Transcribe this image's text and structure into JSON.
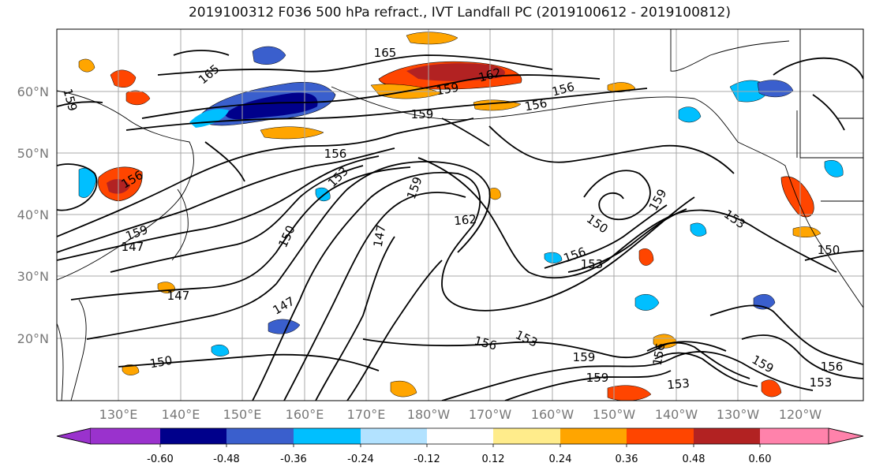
{
  "title": "2019100312 F036 500 hPa refract., IVT Landfall PC (2019100612 - 2019100812)",
  "map": {
    "lat_labels": [
      "60°N",
      "50°N",
      "40°N",
      "30°N",
      "20°N"
    ],
    "lon_labels": [
      "130°E",
      "140°E",
      "150°E",
      "160°E",
      "170°E",
      "180°W",
      "170°W",
      "160°W",
      "150°W",
      "140°W",
      "130°W",
      "120°W"
    ],
    "contour_labels": [
      "165",
      "165",
      "159",
      "159",
      "162",
      "156",
      "156",
      "159",
      "156",
      "153",
      "156",
      "159",
      "150",
      "162",
      "159",
      "150",
      "159",
      "153",
      "147",
      "147",
      "156",
      "153",
      "150",
      "147",
      "150",
      "156",
      "153",
      "159",
      "159",
      "156",
      "153",
      "159",
      "156",
      "153",
      "147"
    ]
  },
  "colorbar": {
    "tick_labels": [
      "-0.60",
      "-0.48",
      "-0.36",
      "-0.24",
      "-0.12",
      "0.12",
      "0.24",
      "0.36",
      "0.48",
      "0.60"
    ],
    "colors": [
      "#9a32cd",
      "#00008b",
      "#3a5fcd",
      "#00bfff",
      "#b2e2ff",
      "#ffffff",
      "#ffec8b",
      "#ffa500",
      "#ff4500",
      "#b22222",
      "#ff82ab"
    ]
  }
}
